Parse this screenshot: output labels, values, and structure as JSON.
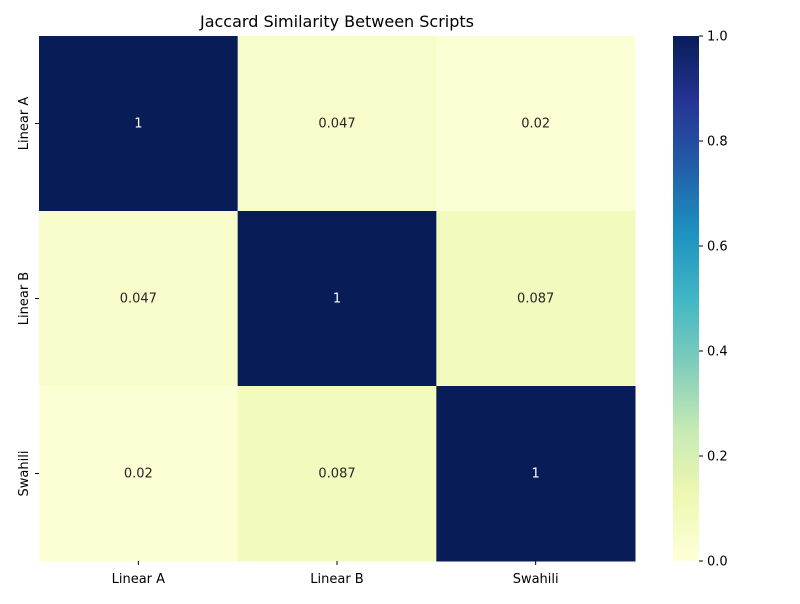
{
  "chart_data": {
    "type": "heatmap",
    "title": "Jaccard Similarity Between Scripts",
    "xlabel": "",
    "ylabel": "",
    "x_categories": [
      "Linear A",
      "Linear B",
      "Swahili"
    ],
    "y_categories": [
      "Linear A",
      "Linear B",
      "Swahili"
    ],
    "values": [
      [
        1,
        0.047,
        0.02
      ],
      [
        0.047,
        1,
        0.087
      ],
      [
        0.02,
        0.087,
        1
      ]
    ],
    "annotations": [
      [
        "1",
        "0.047",
        "0.02"
      ],
      [
        "0.047",
        "1",
        "0.087"
      ],
      [
        "0.02",
        "0.087",
        "1"
      ]
    ],
    "colormap": "YlGnBu",
    "colorbar": {
      "range": [
        0,
        1
      ],
      "ticks": [
        0.0,
        0.2,
        0.4,
        0.6,
        0.8,
        1.0
      ],
      "tick_labels": [
        "0.0",
        "0.2",
        "0.4",
        "0.6",
        "0.8",
        "1.0"
      ]
    },
    "grid": false
  }
}
